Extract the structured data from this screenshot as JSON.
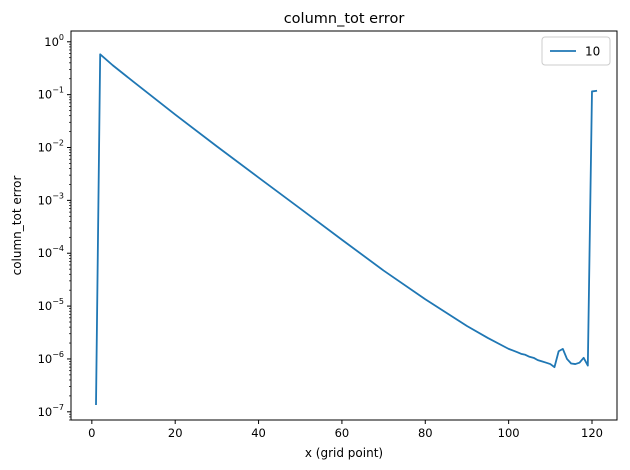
{
  "chart_data": {
    "type": "line",
    "title": "column_tot error",
    "xlabel": "x (grid point)",
    "ylabel": "column_tot error",
    "y_scale": "log",
    "xlim": [
      -5,
      126
    ],
    "ylim": [
      7e-08,
      1.6
    ],
    "grid": false,
    "legend_position": "top-right",
    "x_ticks": [
      0,
      20,
      40,
      60,
      80,
      100,
      120
    ],
    "x_tick_labels": [
      "0",
      "20",
      "40",
      "60",
      "80",
      "100",
      "120"
    ],
    "y_ticks": [
      1e-07,
      1e-06,
      1e-05,
      0.0001,
      0.001,
      0.01,
      0.1,
      1
    ],
    "y_tick_labels": [
      {
        "base": "10",
        "exp": "−7"
      },
      {
        "base": "10",
        "exp": "−6"
      },
      {
        "base": "10",
        "exp": "−5"
      },
      {
        "base": "10",
        "exp": "−4"
      },
      {
        "base": "10",
        "exp": "−3"
      },
      {
        "base": "10",
        "exp": "−2"
      },
      {
        "base": "10",
        "exp": "−1"
      },
      {
        "base": "10",
        "exp": "0"
      }
    ],
    "series": [
      {
        "name": "10",
        "color": "#1f77b4",
        "points": [
          [
            1,
            1.4e-07
          ],
          [
            2,
            0.58
          ],
          [
            5,
            0.36
          ],
          [
            10,
            0.175
          ],
          [
            20,
            0.042
          ],
          [
            30,
            0.0105
          ],
          [
            40,
            0.0027
          ],
          [
            50,
            0.0007
          ],
          [
            60,
            0.00018
          ],
          [
            70,
            4.7e-05
          ],
          [
            80,
            1.35e-05
          ],
          [
            90,
            4.2e-06
          ],
          [
            95,
            2.5e-06
          ],
          [
            100,
            1.55e-06
          ],
          [
            101,
            1.45e-06
          ],
          [
            102,
            1.35e-06
          ],
          [
            103,
            1.25e-06
          ],
          [
            104,
            1.2e-06
          ],
          [
            105,
            1.1e-06
          ],
          [
            106,
            1.05e-06
          ],
          [
            107,
            9.5e-07
          ],
          [
            108,
            9e-07
          ],
          [
            109,
            8.5e-07
          ],
          [
            110,
            8e-07
          ],
          [
            111,
            7e-07
          ],
          [
            112,
            1.4e-06
          ],
          [
            113,
            1.55e-06
          ],
          [
            114,
            1e-06
          ],
          [
            115,
            8.2e-07
          ],
          [
            116,
            8e-07
          ],
          [
            117,
            8.5e-07
          ],
          [
            118,
            1.05e-06
          ],
          [
            119,
            7.5e-07
          ],
          [
            120,
            0.115
          ],
          [
            121,
            0.118
          ]
        ]
      }
    ]
  }
}
